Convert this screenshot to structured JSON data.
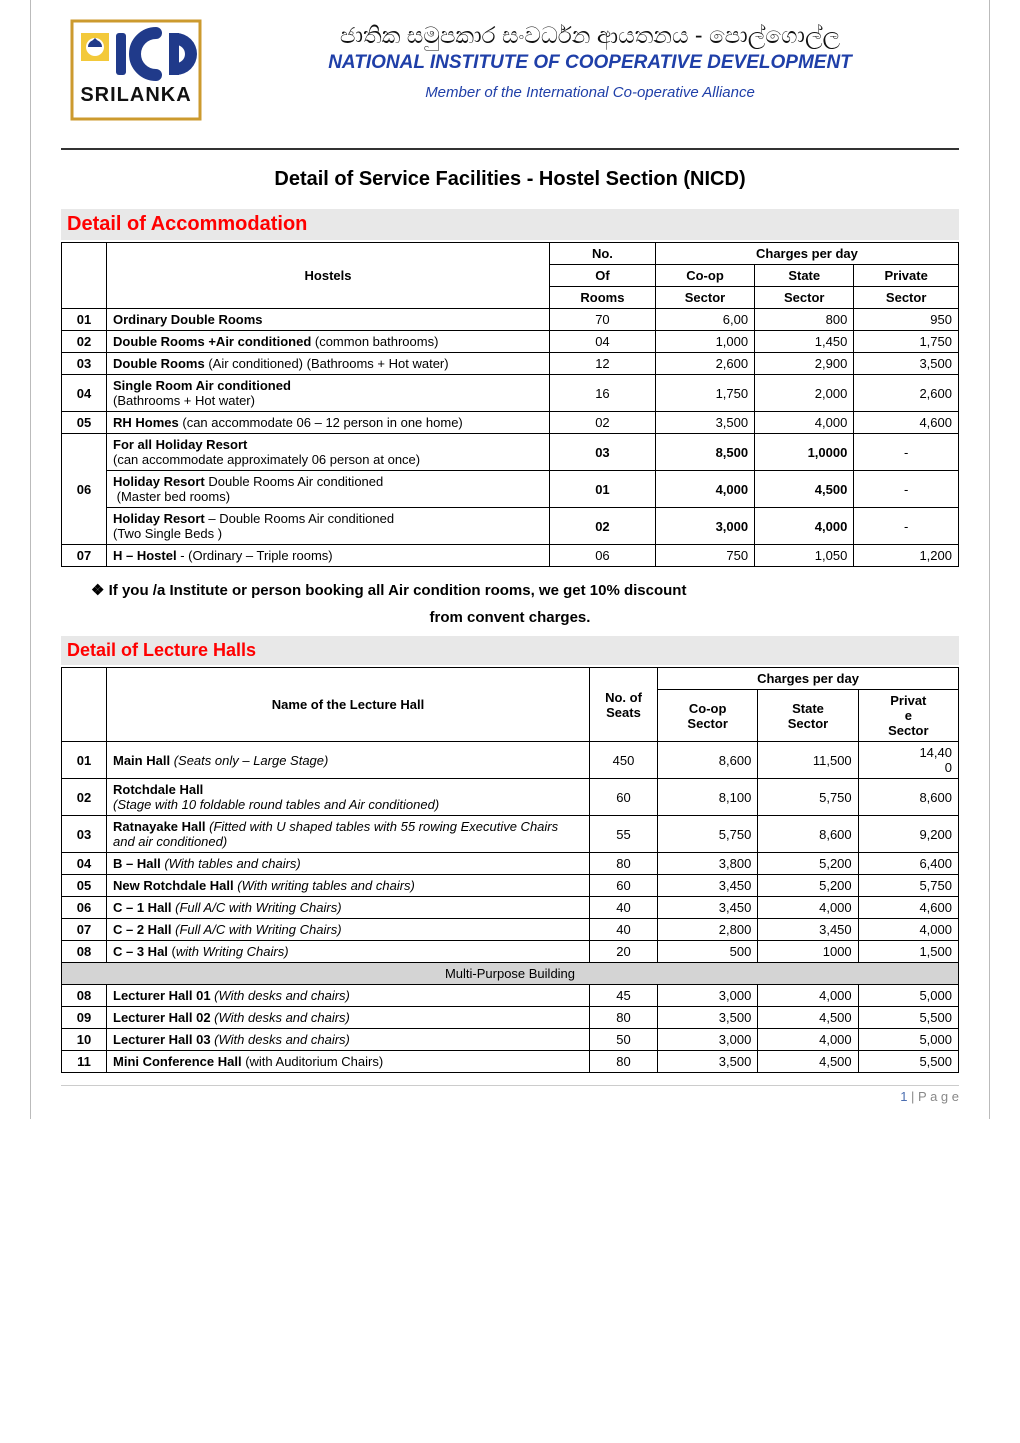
{
  "header": {
    "sinhala": "ජාතික සමුපකාර සංවර්ධන ආයතනය - පොල්ගොල්ල",
    "english_title": "NATIONAL INSTITUTE OF COOPERATIVE DEVELOPMENT",
    "member": "Member of the International Co-operative Alliance",
    "logo_text_top": "icd",
    "logo_text_bottom": "SRILANKA",
    "logo_bg": "#ffffff",
    "logo_border": "#cc9a2e",
    "logo_icd_color": "#203a8a",
    "logo_n_square": "#f3c93a"
  },
  "main_heading": "Detail of Service Facilities   -   Hostel Section (NICD)",
  "accommodation": {
    "section_title": "Detail of Accommodation",
    "head": {
      "hostels": "Hostels",
      "no_of_rooms_l1": "No.",
      "no_of_rooms_l2": "Of",
      "no_of_rooms_l3": "Rooms",
      "charges": "Charges per day",
      "coop_l1": "Co-op",
      "coop_l2": "Sector",
      "state_l1": "State",
      "state_l2": "Sector",
      "priv_l1": "Private",
      "priv_l2": "Sector"
    },
    "rows": [
      {
        "idx": "01",
        "desc": "<b>Ordinary Double Rooms</b>",
        "rooms": "70",
        "coop": "6,00",
        "state": "800",
        "priv": "950"
      },
      {
        "idx": "02",
        "desc": "<b>Double Rooms +Air conditioned</b> (common bathrooms)",
        "rooms": "04",
        "coop": "1,000",
        "state": "1,450",
        "priv": "1,750"
      },
      {
        "idx": "03",
        "desc": "<b>Double Rooms</b> (Air conditioned) (Bathrooms + Hot water)",
        "rooms": "12",
        "coop": "2,600",
        "state": "2,900",
        "priv": "3,500"
      },
      {
        "idx": "04",
        "desc": "<b>Single Room Air conditioned</b><br>(Bathrooms + Hot water)",
        "rooms": "16",
        "coop": "1,750",
        "state": "2,000",
        "priv": "2,600"
      },
      {
        "idx": "05",
        "desc": "<b>RH Homes</b> (can accommodate  06 – 12 person in one home)",
        "rooms": "02",
        "coop": "3,500",
        "state": "4,000",
        "priv": "4,600"
      }
    ],
    "block06": {
      "idx": "06",
      "sub": [
        {
          "desc": "<b>For all Holiday Resort</b><br>(can accommodate approximately 06 person at once)",
          "rooms": "03",
          "coop": "8,500",
          "state": "1,0000",
          "priv": "-",
          "boldnums": true
        },
        {
          "desc": "<b>Holiday Resort</b> Double Rooms Air conditioned<br>&nbsp;(Master bed rooms)",
          "rooms": "01",
          "coop": "4,000",
          "state": "4,500",
          "priv": "-",
          "boldnums": true
        },
        {
          "desc": "<b>Holiday Resort</b> – Double Rooms Air conditioned<br>(Two Single Beds )",
          "rooms": "02",
          "coop": "3,000",
          "state": "4,000",
          "priv": "-",
          "boldnums": true
        }
      ]
    },
    "row07": {
      "idx": "07",
      "desc": "<b>H – Hostel</b> - (Ordinary – Triple rooms)",
      "rooms": "06",
      "coop": "750",
      "state": "1,050",
      "priv": "1,200"
    }
  },
  "note_line1": "❖  If you /a Institute or person booking all Air condition rooms, we get 10% discount",
  "note_line2": "from convent charges.",
  "lecture": {
    "section_title": "Detail of Lecture Halls",
    "head": {
      "name": "Name of the Lecture Hall",
      "seats_l1": "No. of",
      "seats_l2": "Seats",
      "charges": "Charges per day",
      "coop_l1": "Co-op",
      "coop_l2": "Sector",
      "state_l1": "State",
      "state_l2": "Sector",
      "priv_l1": "Privat",
      "priv_l2": "e",
      "priv_l3": "Sector"
    },
    "rows": [
      {
        "idx": "01",
        "desc": "<b>Main Hall</b> <i>(Seats only – Large Stage)</i>",
        "seats": "450",
        "coop": "8,600",
        "state": "11,500",
        "priv": "14,40<br>0"
      },
      {
        "idx": "02",
        "desc": "<b>Rotchdale Hall</b><br><i>(Stage with 10 foldable round tables and Air conditioned)</i>",
        "seats": "60",
        "coop": "8,100",
        "state": "5,750",
        "priv": "8,600"
      },
      {
        "idx": "03",
        "desc": "<b>Ratnayake Hall</b> <i>(Fitted with U shaped tables with 55 rowing  Executive Chairs and air conditioned)</i>",
        "seats": "55",
        "coop": "5,750",
        "state": "8,600",
        "priv": "9,200"
      },
      {
        "idx": "04",
        "desc": "<b>B – Hall</b> <i>(With tables and chairs)</i>",
        "seats": "80",
        "coop": "3,800",
        "state": "5,200",
        "priv": "6,400"
      },
      {
        "idx": "05",
        "desc": "<b>New Rotchdale Hall</b> <i>(With writing tables and chairs)</i>",
        "seats": "60",
        "coop": "3,450",
        "state": "5,200",
        "priv": "5,750"
      },
      {
        "idx": "06",
        "desc": "<b>C – 1 Hall</b>  <i>(Full A/C with Writing Chairs)</i>",
        "seats": "40",
        "coop": "3,450",
        "state": "4,000",
        "priv": "4,600"
      },
      {
        "idx": "07",
        "desc": "<b>C – 2  Hall</b>  <i>(Full A/C with Writing Chairs)</i>",
        "seats": "40",
        "coop": "2,800",
        "state": "3,450",
        "priv": "4,000"
      },
      {
        "idx": "08",
        "desc": "<b>C – 3 Hal</b>  (<i>with Writing Chairs)</i>",
        "seats": "20",
        "coop": "500",
        "state": "1000",
        "priv": "1,500"
      }
    ],
    "mpb_label": "Multi-Purpose Building",
    "rows2": [
      {
        "idx": "08",
        "desc": "<b>Lecturer Hall 01</b> <i>(With desks and chairs)</i>",
        "seats": "45",
        "coop": "3,000",
        "state": "4,000",
        "priv": "5,000"
      },
      {
        "idx": "09",
        "desc": "<b>Lecturer Hall  02</b> <i>(With desks and chairs)</i>",
        "seats": "80",
        "coop": "3,500",
        "state": "4,500",
        "priv": "5,500"
      },
      {
        "idx": "10",
        "desc": "<b>Lecturer Hall  03</b>  <i>(With desks and chairs)</i>",
        "seats": "50",
        "coop": "3,000",
        "state": "4,000",
        "priv": "5,000"
      },
      {
        "idx": "11",
        "desc": "<b>Mini Conference Hall</b> (with Auditorium Chairs)",
        "seats": "80",
        "coop": "3,500",
        "state": "4,500",
        "priv": "5,500"
      }
    ]
  },
  "footer": {
    "page_n": "1",
    "page_label": " | P a g e"
  },
  "style": {
    "bar_bg": "#e8e8e8",
    "bar_fg": "#ff0000",
    "blue": "#1f3fa8"
  }
}
